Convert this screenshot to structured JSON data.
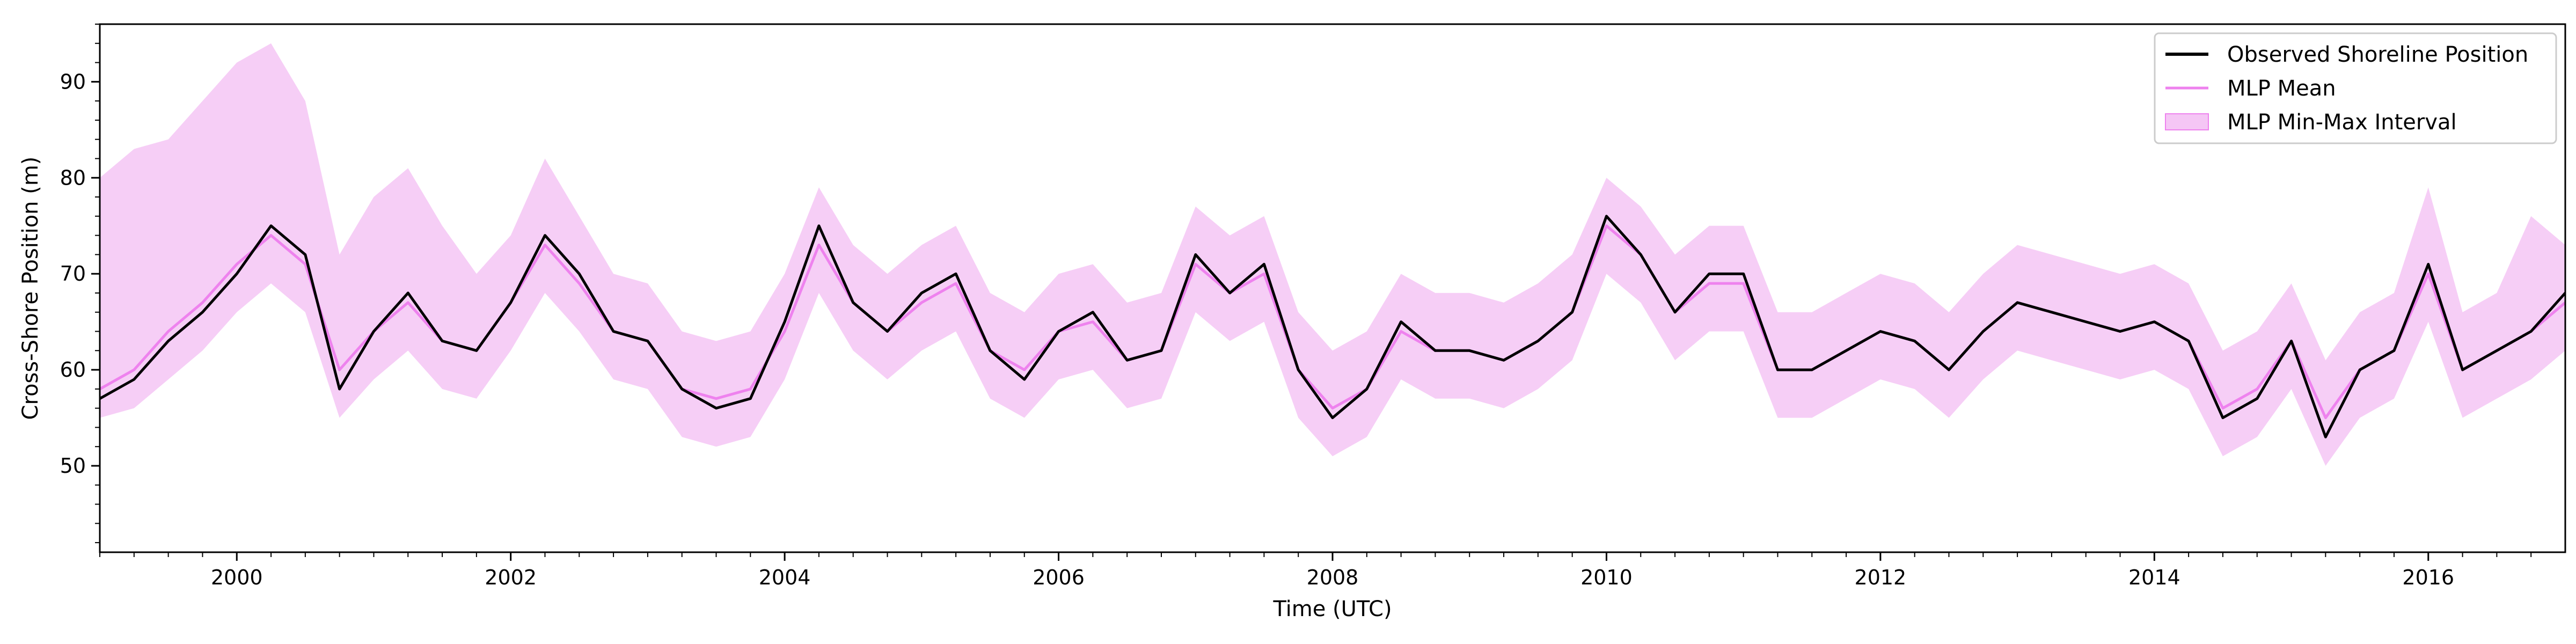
{
  "chart_data": {
    "type": "line",
    "title": "",
    "xlabel": "Time (UTC)",
    "ylabel": "Cross-Shore Position (m)",
    "xlim": [
      "1999-01-01",
      "2017-01-01"
    ],
    "ylim": [
      41,
      96
    ],
    "x_ticks": [
      "2000",
      "2002",
      "2004",
      "2006",
      "2008",
      "2010",
      "2012",
      "2014",
      "2016"
    ],
    "y_ticks": [
      50,
      60,
      70,
      80,
      90
    ],
    "grid": false,
    "legend_position": "top-right",
    "colors": {
      "observed": "#000000",
      "mean": "#ee82ee",
      "interval": "#f5c6f5"
    },
    "series": [
      {
        "name": "Observed Shoreline Position",
        "role": "observed",
        "x": [
          "1999-01",
          "1999-04",
          "1999-07",
          "1999-10",
          "2000-01",
          "2000-04",
          "2000-07",
          "2000-10",
          "2001-01",
          "2001-04",
          "2001-07",
          "2001-10",
          "2002-01",
          "2002-04",
          "2002-07",
          "2002-10",
          "2003-01",
          "2003-04",
          "2003-07",
          "2003-10",
          "2004-01",
          "2004-04",
          "2004-07",
          "2004-10",
          "2005-01",
          "2005-04",
          "2005-07",
          "2005-10",
          "2006-01",
          "2006-04",
          "2006-07",
          "2006-10",
          "2007-01",
          "2007-04",
          "2007-07",
          "2007-10",
          "2008-01",
          "2008-04",
          "2008-07",
          "2008-10",
          "2009-01",
          "2009-04",
          "2009-07",
          "2009-10",
          "2010-01",
          "2010-04",
          "2010-07",
          "2010-10",
          "2011-01",
          "2011-04",
          "2011-07",
          "2011-10",
          "2012-01",
          "2012-04",
          "2012-07",
          "2012-10",
          "2013-01",
          "2013-04",
          "2013-07",
          "2013-10",
          "2014-01",
          "2014-04",
          "2014-07",
          "2014-10",
          "2015-01",
          "2015-04",
          "2015-07",
          "2015-10",
          "2016-01",
          "2016-04",
          "2016-07",
          "2016-10",
          "2017-01"
        ],
        "y": [
          57,
          59,
          63,
          66,
          70,
          75,
          72,
          58,
          64,
          68,
          63,
          62,
          67,
          74,
          70,
          64,
          63,
          58,
          56,
          57,
          65,
          75,
          67,
          64,
          68,
          70,
          62,
          59,
          64,
          66,
          61,
          62,
          72,
          68,
          71,
          60,
          55,
          58,
          65,
          62,
          62,
          61,
          63,
          66,
          76,
          72,
          66,
          70,
          70,
          60,
          60,
          62,
          64,
          63,
          60,
          64,
          67,
          66,
          65,
          64,
          65,
          63,
          55,
          57,
          63,
          53,
          60,
          62,
          71,
          60,
          62,
          64,
          68
        ]
      },
      {
        "name": "MLP Mean",
        "role": "mean",
        "x": [
          "1999-01",
          "1999-04",
          "1999-07",
          "1999-10",
          "2000-01",
          "2000-04",
          "2000-07",
          "2000-10",
          "2001-01",
          "2001-04",
          "2001-07",
          "2001-10",
          "2002-01",
          "2002-04",
          "2002-07",
          "2002-10",
          "2003-01",
          "2003-04",
          "2003-07",
          "2003-10",
          "2004-01",
          "2004-04",
          "2004-07",
          "2004-10",
          "2005-01",
          "2005-04",
          "2005-07",
          "2005-10",
          "2006-01",
          "2006-04",
          "2006-07",
          "2006-10",
          "2007-01",
          "2007-04",
          "2007-07",
          "2007-10",
          "2008-01",
          "2008-04",
          "2008-07",
          "2008-10",
          "2009-01",
          "2009-04",
          "2009-07",
          "2009-10",
          "2010-01",
          "2010-04",
          "2010-07",
          "2010-10",
          "2011-01",
          "2011-04",
          "2011-07",
          "2011-10",
          "2012-01",
          "2012-04",
          "2012-07",
          "2012-10",
          "2013-01",
          "2013-04",
          "2013-07",
          "2013-10",
          "2014-01",
          "2014-04",
          "2014-07",
          "2014-10",
          "2015-01",
          "2015-04",
          "2015-07",
          "2015-10",
          "2016-01",
          "2016-04",
          "2016-07",
          "2016-10",
          "2017-01"
        ],
        "y": [
          58,
          60,
          64,
          67,
          71,
          74,
          71,
          60,
          64,
          67,
          63,
          62,
          67,
          73,
          69,
          64,
          63,
          58,
          57,
          58,
          64,
          73,
          67,
          64,
          67,
          69,
          62,
          60,
          64,
          65,
          61,
          62,
          71,
          68,
          70,
          60,
          56,
          58,
          64,
          62,
          62,
          61,
          63,
          66,
          75,
          72,
          66,
          69,
          69,
          60,
          60,
          62,
          64,
          63,
          60,
          64,
          67,
          66,
          65,
          64,
          65,
          63,
          56,
          58,
          63,
          55,
          60,
          62,
          70,
          60,
          62,
          64,
          67
        ]
      },
      {
        "name": "MLP Min-Max Interval",
        "role": "interval",
        "x": [
          "1999-01",
          "1999-04",
          "1999-07",
          "1999-10",
          "2000-01",
          "2000-04",
          "2000-07",
          "2000-10",
          "2001-01",
          "2001-04",
          "2001-07",
          "2001-10",
          "2002-01",
          "2002-04",
          "2002-07",
          "2002-10",
          "2003-01",
          "2003-04",
          "2003-07",
          "2003-10",
          "2004-01",
          "2004-04",
          "2004-07",
          "2004-10",
          "2005-01",
          "2005-04",
          "2005-07",
          "2005-10",
          "2006-01",
          "2006-04",
          "2006-07",
          "2006-10",
          "2007-01",
          "2007-04",
          "2007-07",
          "2007-10",
          "2008-01",
          "2008-04",
          "2008-07",
          "2008-10",
          "2009-01",
          "2009-04",
          "2009-07",
          "2009-10",
          "2010-01",
          "2010-04",
          "2010-07",
          "2010-10",
          "2011-01",
          "2011-04",
          "2011-07",
          "2011-10",
          "2012-01",
          "2012-04",
          "2012-07",
          "2012-10",
          "2013-01",
          "2013-04",
          "2013-07",
          "2013-10",
          "2014-01",
          "2014-04",
          "2014-07",
          "2014-10",
          "2015-01",
          "2015-04",
          "2015-07",
          "2015-10",
          "2016-01",
          "2016-04",
          "2016-07",
          "2016-10",
          "2017-01"
        ],
        "y_min": [
          55,
          56,
          59,
          62,
          66,
          69,
          66,
          55,
          59,
          62,
          58,
          57,
          62,
          68,
          64,
          59,
          58,
          53,
          52,
          53,
          59,
          68,
          62,
          59,
          62,
          64,
          57,
          55,
          59,
          60,
          56,
          57,
          66,
          63,
          65,
          55,
          51,
          53,
          59,
          57,
          57,
          56,
          58,
          61,
          70,
          67,
          61,
          64,
          64,
          55,
          55,
          57,
          59,
          58,
          55,
          59,
          62,
          61,
          60,
          59,
          60,
          58,
          51,
          53,
          58,
          50,
          55,
          57,
          65,
          55,
          57,
          59,
          62
        ],
        "y_max": [
          80,
          83,
          84,
          88,
          92,
          94,
          88,
          72,
          78,
          81,
          75,
          70,
          74,
          82,
          76,
          70,
          69,
          64,
          63,
          64,
          70,
          79,
          73,
          70,
          73,
          75,
          68,
          66,
          70,
          71,
          67,
          68,
          77,
          74,
          76,
          66,
          62,
          64,
          70,
          68,
          68,
          67,
          69,
          72,
          80,
          77,
          72,
          75,
          75,
          66,
          66,
          68,
          70,
          69,
          66,
          70,
          73,
          72,
          71,
          70,
          71,
          69,
          62,
          64,
          69,
          61,
          66,
          68,
          79,
          66,
          68,
          76,
          73
        ]
      }
    ]
  }
}
